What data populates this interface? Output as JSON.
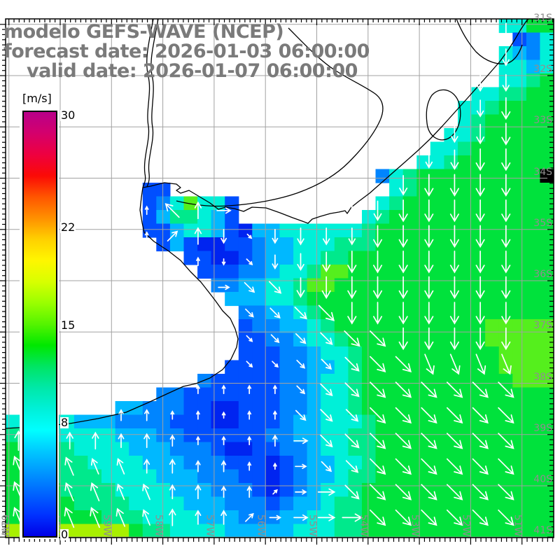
{
  "title": {
    "line1": "modelo GEFS-WAVE (NCEP)",
    "line2": "forecast date: 2026-01-03 06:00:00",
    "line3": "valid date: 2026-01-07 06:00:00"
  },
  "colorbar": {
    "unit": "[m/s]",
    "tick_labels": [
      "30",
      "22",
      "15",
      "8",
      "0"
    ],
    "tick_values": [
      30,
      22,
      15,
      8,
      0
    ],
    "min": 0,
    "max": 30,
    "gradient_top_to_bottom": [
      "#b8008a",
      "#d4006c",
      "#ee0040",
      "#fb0a06",
      "#ff5500",
      "#ff9000",
      "#ffd000",
      "#fff600",
      "#d8ff00",
      "#9aff00",
      "#55f400",
      "#00e800",
      "#00e564",
      "#00e8a8",
      "#00f0d8",
      "#00ffff",
      "#00c8ff",
      "#0096ff",
      "#0064ff",
      "#0032ff",
      "#0000e6"
    ]
  },
  "axes": {
    "lon_labels": [
      "61W",
      "60W",
      "59W",
      "58W",
      "57W",
      "56W",
      "55W",
      "54W",
      "53W",
      "52W",
      "51W"
    ],
    "lat_labels": [
      "31S",
      "32S",
      "33S",
      "34S",
      "35S",
      "36S",
      "37S",
      "38S",
      "39S",
      "40S",
      "41S"
    ],
    "grid_color": "#a2a2a2",
    "label_color": "#8f8f8f"
  },
  "chart_data": {
    "type": "heatmap",
    "field": "wind speed",
    "units": "m/s",
    "overlay": "direction vectors (white arrows)",
    "lon_range": [
      "61W",
      "51W"
    ],
    "lat_range": [
      "31S",
      "41S"
    ],
    "palette": {
      "g": "#00e23c",
      "G": "#55ef1d",
      "y": "#a8f000",
      "h": "#00e98c",
      "c": "#00f0d8",
      "t": "#00b8ff",
      "b": "#0085ff",
      "B": "#004fff",
      "D": "#0024f0",
      ".": "none"
    },
    "speed_by_class": {
      "g": 12,
      "G": 13.5,
      "y": 15,
      "h": 10.5,
      "c": 9,
      "t": 7.5,
      "b": 6,
      "B": 4.5,
      "D": 3
    },
    "cells_rows": [
      "....................................ccgg",
      ".....................................Bbc",
      "....................................ctbc",
      "....................................cctc",
      "....................................cchg",
      "..................................cchhgg",
      ".................................cchgggg",
      ".................................chggggg",
      "................................cchggggg",
      "...............................cchgggggg",
      "..............................cchggggggg",
      "...........................bchggggggggg",
      "..........BB................chgggggggggg",
      "..........BbcGccB..........chggggggggggg",
      "..........BthhctB.........chgggggggggggg",
      "..........BBtcctBDttcccccchggggggggggggg",
      "...........BtBDDBBbttccchhhggggggggggggg",
      ".............BBDDBbttcchhggggggggggggggg",
      "..............BBBbbtcchGGggggggggggggggg",
      "...............bbttcchGGgggggggggggggggg",
      "................tttcchgggggggggggggggggg",
      ".................bbttchggggggggggggggggg",
      ".................BbbttchgggggggggggGGGGG",
      ".................BBbbtcchggggggggggGGGGG",
      ".................BBBbbtcchggggggggggGGGG",
      "................BBBBbbttchggggggggggGGGG",
      "..............bBBBBBbbtcchgggggggggggGGG",
      "...........bbBBBBBBBbbtcchgggggggggggggg",
      "........ttbbbBBDDBBBbbtcchgggggggggggggg",
      "ccccctttbbbbBBBDDBBBbttccchggggggggggggg",
      "hhhccccctttbbBBBBBBbbttcchhggggggggggggg",
      "ghhhhcccctttbbbBDDBBbbtcchhggggggggggggg",
      "gghhhhcccctttbbbBBBDBbttcchggggggggggggg",
      "ggghhhhcccctttbbbBBDBbttchhggggggggggggg",
      "gggghhhhcccctttbbbBDBbtcchgggggggggggggg",
      "ggggghhhhcccctttbbbBbttchhgggggggggggggg",
      "ggggggghhhcccctttbbbttcchhgggggggggggggg",
      "yyyyyyyyyghhcccctttttccchhgggggggggggggg"
    ],
    "arrow_rows": [
      "...................s",
      "...................s",
      "..................ss",
      "..................ss",
      ".................sss",
      "................ssss",
      "...............sssss",
      ".....ndne....sssssss",
      ".....nansbssssssssss",
      ".......nsbssssssssss",
      "........ebbsssssssss",
      ".........bbbbsssssss",
      ".........bbbbbbsssss",
      ".........bbbbbbbvvvv",
      ".......nnnnbbbbbbbbb",
      "....nnnnnnnbbbbbbbbb",
      "nnnnnnnnnnnebbbbbbbb",
      "mmmmmnnnnnnebbbbbbbb",
      "mmmmmmnnnnaeebbbbbbb",
      "mmmmmmnnnaeeeebbbbbb"
    ],
    "arrow_direction_codes": {
      "n": "N",
      "q": "NNE",
      "a": "NE",
      "e": "E",
      "b": "SE",
      "v": "SSE",
      "s": "S",
      "c": "SW",
      "w": "W",
      "d": "NW",
      "m": "NNW",
      ".": "none"
    },
    "arrow_color": "#ffffff",
    "legend_note": "arrow length scales with wind speed of underlying cell"
  },
  "map_style": {
    "coast_color": "#000000",
    "land_color": "#ffffff",
    "frame_color": "#000000"
  }
}
